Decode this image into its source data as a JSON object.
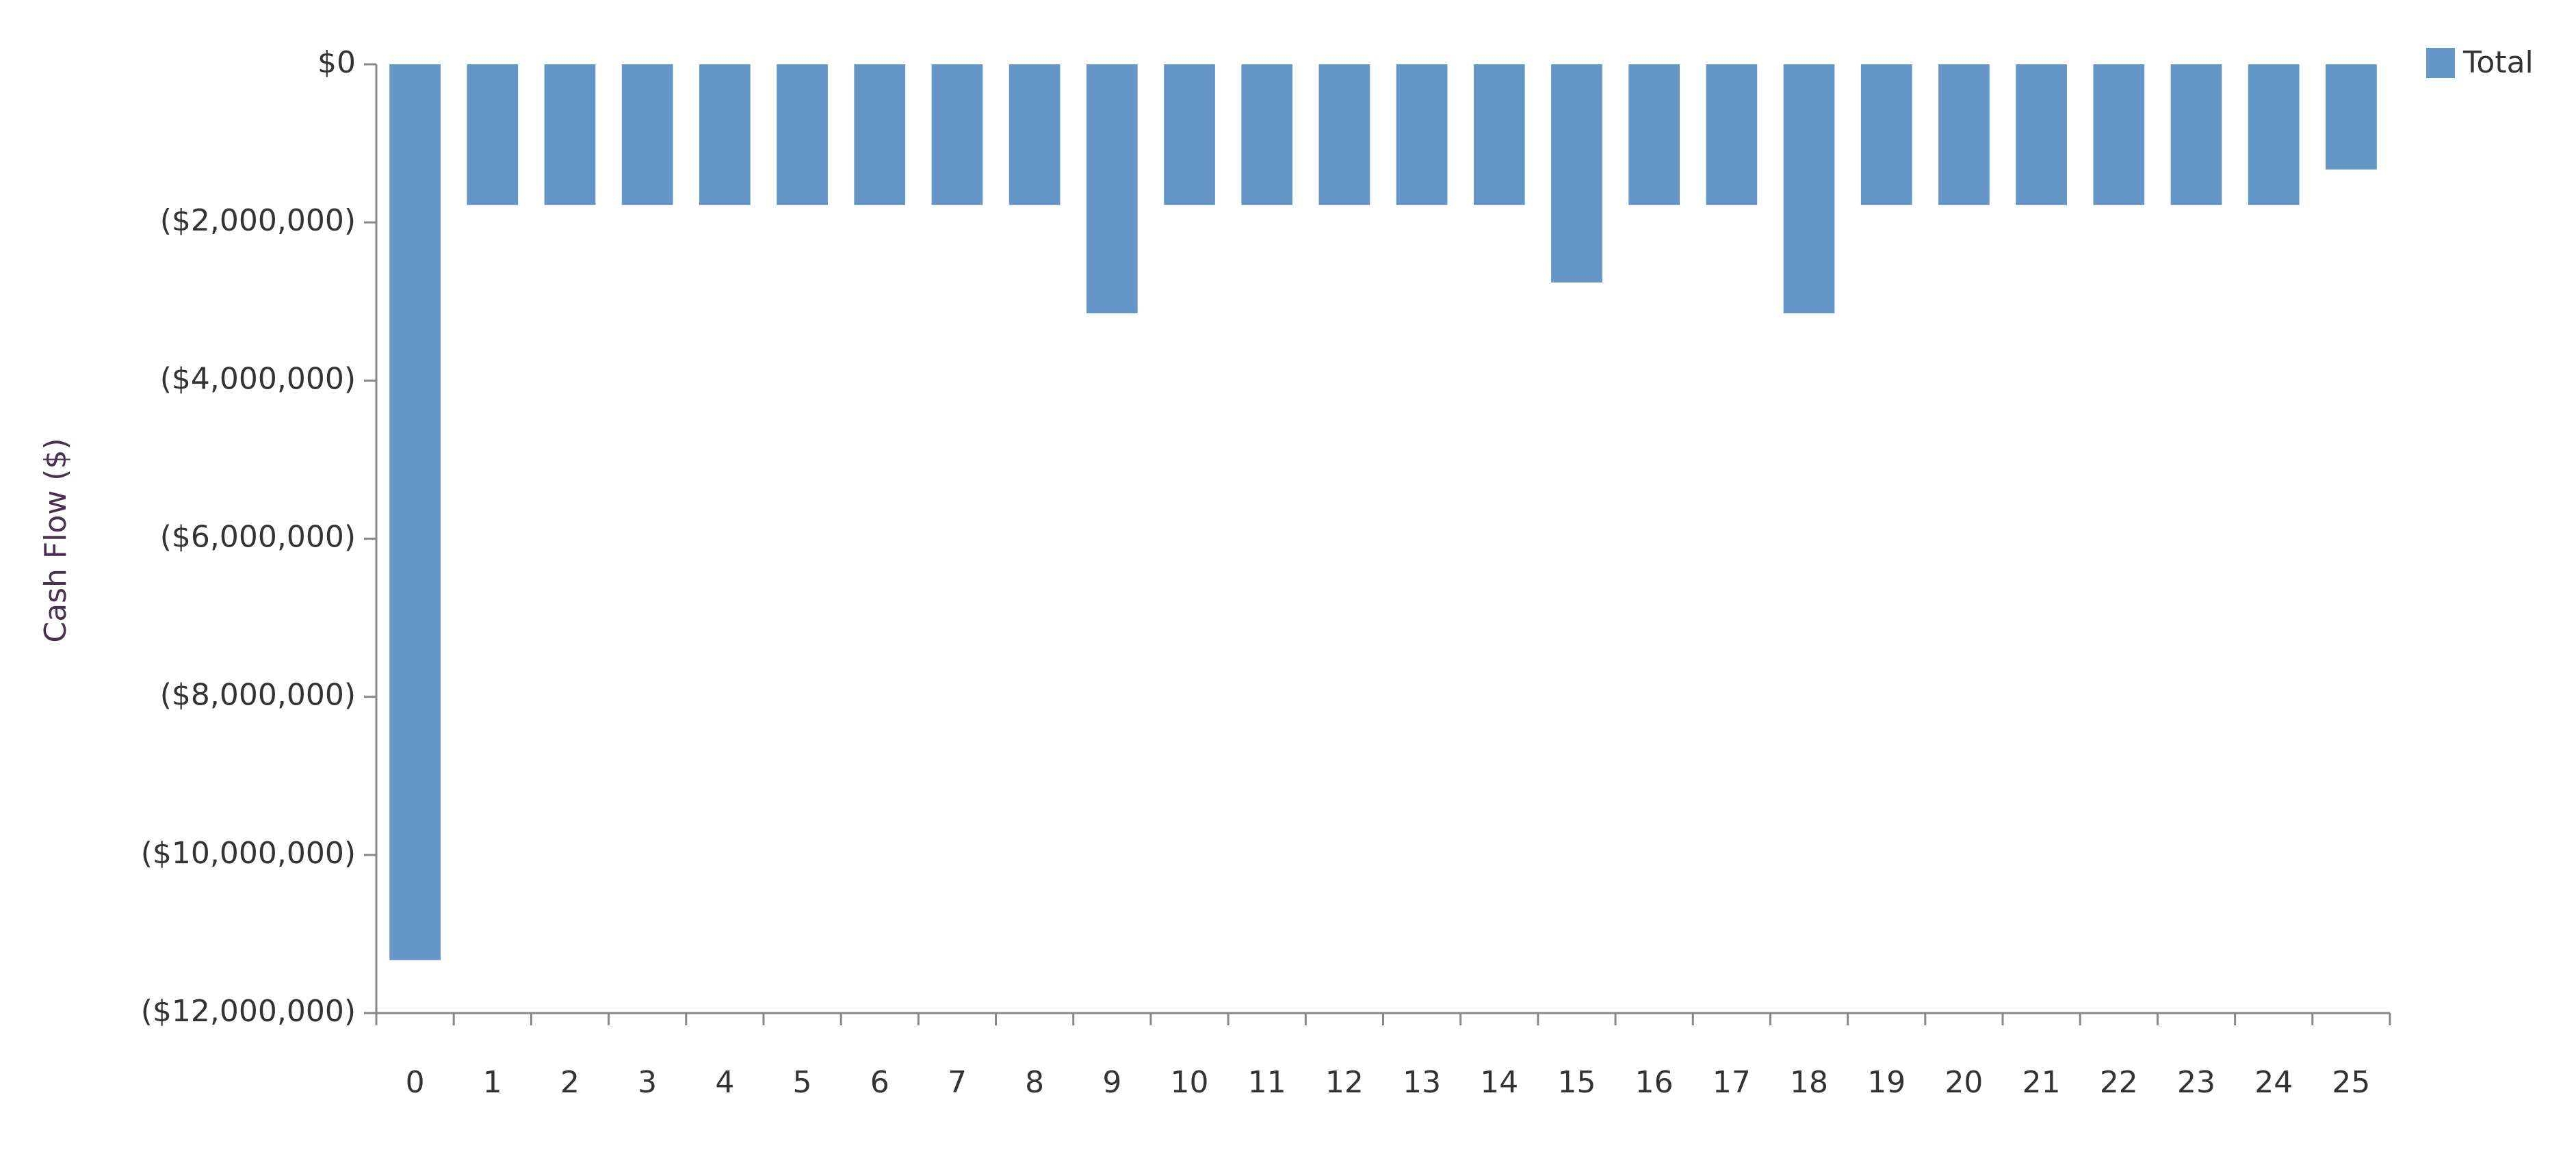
{
  "chart_data": {
    "type": "bar",
    "y_label": "Cash Flow ($)",
    "categories": [
      "0",
      "1",
      "2",
      "3",
      "4",
      "5",
      "6",
      "7",
      "8",
      "9",
      "10",
      "11",
      "12",
      "13",
      "14",
      "15",
      "16",
      "17",
      "18",
      "19",
      "20",
      "21",
      "22",
      "23",
      "24",
      "25"
    ],
    "series": [
      {
        "name": "Total",
        "color": "#6596c8",
        "values": [
          -11330000,
          -1780000,
          -1780000,
          -1780000,
          -1780000,
          -1780000,
          -1780000,
          -1780000,
          -1780000,
          -3150000,
          -1780000,
          -1780000,
          -1780000,
          -1780000,
          -1780000,
          -2760000,
          -1780000,
          -1780000,
          -3150000,
          -1780000,
          -1780000,
          -1780000,
          -1780000,
          -1780000,
          -1780000,
          -1330000
        ]
      }
    ],
    "ylim": [
      -12000000,
      0
    ],
    "yticks": [
      {
        "value": 0,
        "label": "$0"
      },
      {
        "value": -2000000,
        "label": "($2,000,000)"
      },
      {
        "value": -4000000,
        "label": "($4,000,000)"
      },
      {
        "value": -6000000,
        "label": "($6,000,000)"
      },
      {
        "value": -8000000,
        "label": "($8,000,000)"
      },
      {
        "value": -10000000,
        "label": "($10,000,000)"
      },
      {
        "value": -12000000,
        "label": "($12,000,000)"
      }
    ],
    "legend": "top-right"
  }
}
